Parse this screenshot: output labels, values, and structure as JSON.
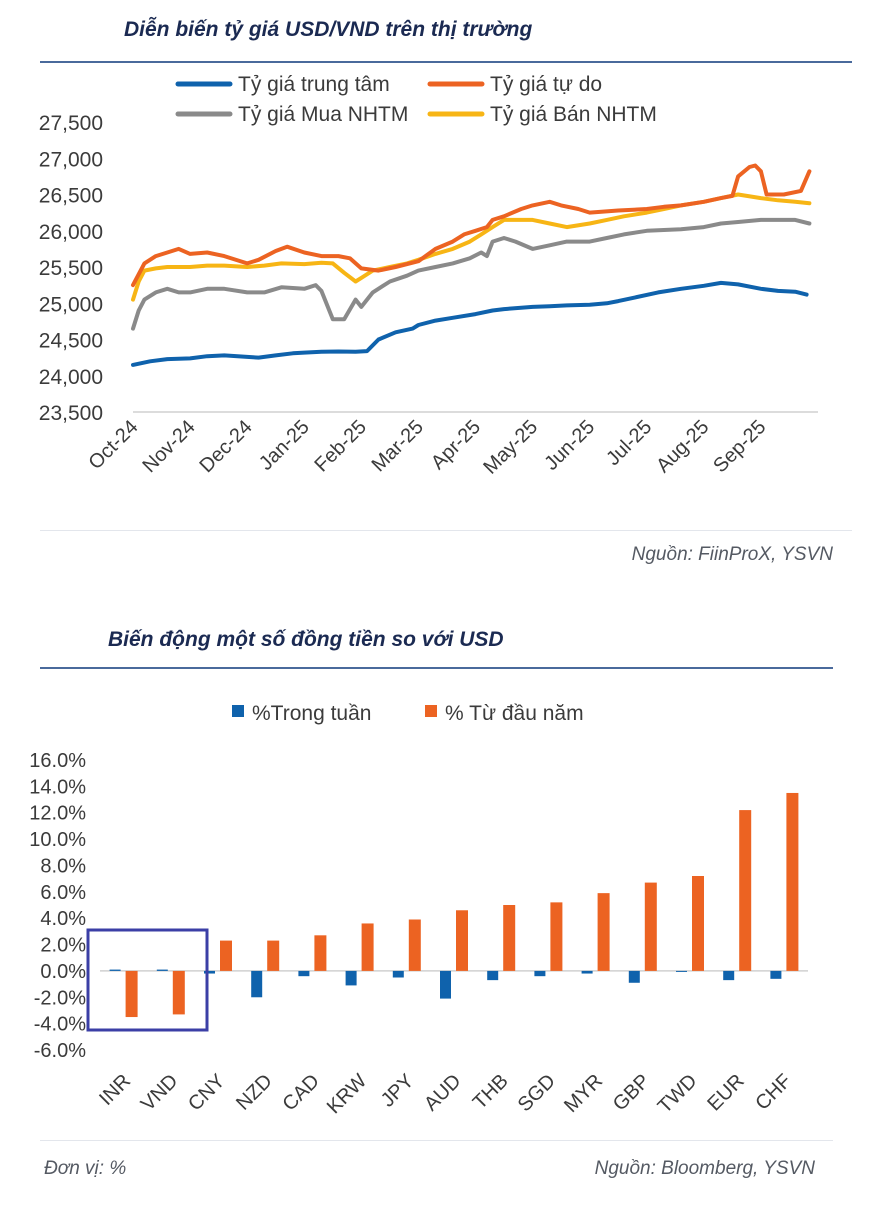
{
  "chart1": {
    "title": "Diễn biến tỷ giá USD/VND trên thị trường",
    "source": "Nguồn: FiinProX, YSVN",
    "colors": {
      "central": "#0f62ac",
      "free": "#ec6322",
      "buy": "#8a8a8a",
      "sell": "#f7b515"
    },
    "chart_data": {
      "type": "line",
      "title": "Diễn biến tỷ giá USD/VND trên thị trường",
      "ylim": [
        23500,
        27500
      ],
      "yticks": [
        "27,500",
        "27,000",
        "26,500",
        "26,000",
        "25,500",
        "25,000",
        "24,500",
        "24,000",
        "23,500"
      ],
      "xticks": [
        "Oct-24",
        "Nov-24",
        "Dec-24",
        "Jan-25",
        "Feb-25",
        "Mar-25",
        "Apr-25",
        "May-25",
        "Jun-25",
        "Jul-25",
        "Aug-25",
        "Sep-25"
      ],
      "x_unit": "months since Oct-24",
      "series": [
        {
          "key": "central",
          "name": "Tỷ giá trung tâm",
          "points": [
            [
              0,
              24150
            ],
            [
              0.3,
              24200
            ],
            [
              0.6,
              24230
            ],
            [
              1,
              24240
            ],
            [
              1.3,
              24270
            ],
            [
              1.6,
              24280
            ],
            [
              2,
              24260
            ],
            [
              2.2,
              24250
            ],
            [
              2.5,
              24280
            ],
            [
              2.8,
              24310
            ],
            [
              3,
              24320
            ],
            [
              3.3,
              24330
            ],
            [
              3.6,
              24335
            ],
            [
              3.9,
              24330
            ],
            [
              4.1,
              24340
            ],
            [
              4.3,
              24500
            ],
            [
              4.6,
              24600
            ],
            [
              4.9,
              24650
            ],
            [
              5,
              24700
            ],
            [
              5.3,
              24760
            ],
            [
              5.6,
              24800
            ],
            [
              6,
              24850
            ],
            [
              6.3,
              24900
            ],
            [
              6.5,
              24920
            ],
            [
              7,
              24950
            ],
            [
              7.3,
              24960
            ],
            [
              7.6,
              24970
            ],
            [
              8,
              24980
            ],
            [
              8.3,
              25000
            ],
            [
              8.5,
              25030
            ],
            [
              8.8,
              25080
            ],
            [
              9.2,
              25150
            ],
            [
              9.6,
              25200
            ],
            [
              10,
              25240
            ],
            [
              10.3,
              25280
            ],
            [
              10.6,
              25260
            ],
            [
              11,
              25200
            ],
            [
              11.3,
              25170
            ],
            [
              11.6,
              25160
            ],
            [
              11.8,
              25120
            ]
          ]
        },
        {
          "key": "free",
          "name": "Tỷ giá tự do",
          "points": [
            [
              0,
              25250
            ],
            [
              0.2,
              25550
            ],
            [
              0.4,
              25650
            ],
            [
              0.6,
              25700
            ],
            [
              0.8,
              25750
            ],
            [
              1,
              25680
            ],
            [
              1.3,
              25700
            ],
            [
              1.6,
              25650
            ],
            [
              2,
              25550
            ],
            [
              2.2,
              25600
            ],
            [
              2.5,
              25720
            ],
            [
              2.7,
              25780
            ],
            [
              3,
              25700
            ],
            [
              3.3,
              25650
            ],
            [
              3.6,
              25650
            ],
            [
              3.8,
              25620
            ],
            [
              4,
              25480
            ],
            [
              4.3,
              25450
            ],
            [
              4.6,
              25500
            ],
            [
              5,
              25580
            ],
            [
              5.3,
              25750
            ],
            [
              5.6,
              25850
            ],
            [
              5.8,
              25950
            ],
            [
              6,
              26000
            ],
            [
              6.2,
              26050
            ],
            [
              6.3,
              26150
            ],
            [
              6.5,
              26200
            ],
            [
              6.8,
              26300
            ],
            [
              7,
              26350
            ],
            [
              7.3,
              26400
            ],
            [
              7.5,
              26350
            ],
            [
              7.8,
              26300
            ],
            [
              8,
              26250
            ],
            [
              8.5,
              26280
            ],
            [
              9,
              26300
            ],
            [
              9.3,
              26330
            ],
            [
              9.6,
              26350
            ],
            [
              10,
              26400
            ],
            [
              10.3,
              26450
            ],
            [
              10.5,
              26480
            ],
            [
              10.6,
              26750
            ],
            [
              10.8,
              26880
            ],
            [
              10.9,
              26900
            ],
            [
              11,
              26820
            ],
            [
              11.1,
              26500
            ],
            [
              11.4,
              26500
            ],
            [
              11.7,
              26550
            ],
            [
              11.85,
              26820
            ]
          ]
        },
        {
          "key": "buy",
          "name": "Tỷ giá Mua NHTM",
          "points": [
            [
              0,
              24650
            ],
            [
              0.1,
              24900
            ],
            [
              0.2,
              25050
            ],
            [
              0.4,
              25150
            ],
            [
              0.6,
              25200
            ],
            [
              0.8,
              25150
            ],
            [
              1,
              25150
            ],
            [
              1.3,
              25200
            ],
            [
              1.6,
              25200
            ],
            [
              2,
              25150
            ],
            [
              2.3,
              25150
            ],
            [
              2.6,
              25220
            ],
            [
              3,
              25200
            ],
            [
              3.2,
              25250
            ],
            [
              3.3,
              25170
            ],
            [
              3.5,
              24780
            ],
            [
              3.7,
              24780
            ],
            [
              3.9,
              25050
            ],
            [
              4,
              24950
            ],
            [
              4.2,
              25150
            ],
            [
              4.5,
              25300
            ],
            [
              4.8,
              25380
            ],
            [
              5,
              25450
            ],
            [
              5.3,
              25500
            ],
            [
              5.6,
              25550
            ],
            [
              5.9,
              25620
            ],
            [
              6.1,
              25700
            ],
            [
              6.2,
              25650
            ],
            [
              6.3,
              25850
            ],
            [
              6.5,
              25900
            ],
            [
              6.7,
              25850
            ],
            [
              7,
              25750
            ],
            [
              7.3,
              25800
            ],
            [
              7.6,
              25850
            ],
            [
              8,
              25850
            ],
            [
              8.3,
              25900
            ],
            [
              8.6,
              25950
            ],
            [
              9,
              26000
            ],
            [
              9.3,
              26010
            ],
            [
              9.6,
              26020
            ],
            [
              10,
              26050
            ],
            [
              10.3,
              26100
            ],
            [
              10.6,
              26120
            ],
            [
              11,
              26150
            ],
            [
              11.3,
              26150
            ],
            [
              11.6,
              26150
            ],
            [
              11.85,
              26100
            ]
          ]
        },
        {
          "key": "sell",
          "name": "Tỷ giá Bán NHTM",
          "points": [
            [
              0,
              25050
            ],
            [
              0.1,
              25300
            ],
            [
              0.2,
              25450
            ],
            [
              0.4,
              25480
            ],
            [
              0.6,
              25500
            ],
            [
              1,
              25500
            ],
            [
              1.3,
              25520
            ],
            [
              1.6,
              25520
            ],
            [
              2,
              25500
            ],
            [
              2.3,
              25520
            ],
            [
              2.6,
              25550
            ],
            [
              3,
              25540
            ],
            [
              3.3,
              25560
            ],
            [
              3.5,
              25550
            ],
            [
              3.7,
              25420
            ],
            [
              3.9,
              25300
            ],
            [
              4,
              25350
            ],
            [
              4.2,
              25450
            ],
            [
              4.5,
              25500
            ],
            [
              4.8,
              25550
            ],
            [
              5,
              25600
            ],
            [
              5.3,
              25680
            ],
            [
              5.6,
              25750
            ],
            [
              5.9,
              25850
            ],
            [
              6.1,
              25950
            ],
            [
              6.3,
              26050
            ],
            [
              6.5,
              26150
            ],
            [
              6.8,
              26150
            ],
            [
              7,
              26150
            ],
            [
              7.3,
              26100
            ],
            [
              7.6,
              26050
            ],
            [
              8,
              26100
            ],
            [
              8.3,
              26150
            ],
            [
              8.6,
              26200
            ],
            [
              9,
              26250
            ],
            [
              9.3,
              26300
            ],
            [
              9.6,
              26350
            ],
            [
              10,
              26400
            ],
            [
              10.3,
              26450
            ],
            [
              10.6,
              26500
            ],
            [
              11,
              26450
            ],
            [
              11.3,
              26420
            ],
            [
              11.6,
              26400
            ],
            [
              11.85,
              26380
            ]
          ]
        }
      ]
    }
  },
  "chart2": {
    "title": "Biến động một số đồng tiền so với USD",
    "note": "Đơn vị: %",
    "source": "Nguồn: Bloomberg, YSVN",
    "colors": {
      "weekly": "#0f62ac",
      "ytd": "#ec6322",
      "highlight": "#3b3fa6"
    },
    "highlight_label": "INR, VND",
    "chart_data": {
      "type": "bar",
      "title": "Biến động một số đồng tiền so với USD",
      "ylim": [
        -6,
        16
      ],
      "yticks": [
        "16.0%",
        "14.0%",
        "12.0%",
        "10.0%",
        "8.0%",
        "6.0%",
        "4.0%",
        "2.0%",
        "0.0%",
        "-2.0%",
        "-4.0%",
        "-6.0%"
      ],
      "categories": [
        "INR",
        "VND",
        "CNY",
        "NZD",
        "CAD",
        "KRW",
        "JPY",
        "AUD",
        "THB",
        "SGD",
        "MYR",
        "GBP",
        "TWD",
        "EUR",
        "CHF"
      ],
      "series": [
        {
          "key": "weekly",
          "name": "%Trong tuần",
          "values": [
            0.1,
            0.1,
            -0.2,
            -2.0,
            -0.4,
            -1.1,
            -0.5,
            -2.1,
            -0.7,
            -0.4,
            -0.2,
            -0.9,
            0.0,
            -0.7,
            -0.6
          ]
        },
        {
          "key": "ytd",
          "name": "% Từ đầu năm",
          "values": [
            -3.5,
            -3.3,
            2.3,
            2.3,
            2.7,
            3.6,
            3.9,
            4.6,
            5.0,
            5.2,
            5.9,
            6.7,
            7.2,
            12.2,
            13.5
          ]
        }
      ]
    }
  }
}
